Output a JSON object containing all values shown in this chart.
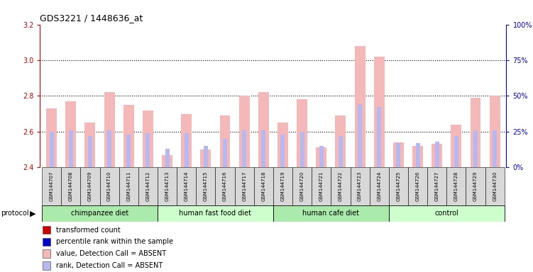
{
  "title": "GDS3221 / 1448636_at",
  "samples": [
    "GSM144707",
    "GSM144708",
    "GSM144709",
    "GSM144710",
    "GSM144711",
    "GSM144712",
    "GSM144713",
    "GSM144714",
    "GSM144715",
    "GSM144716",
    "GSM144717",
    "GSM144718",
    "GSM144719",
    "GSM144720",
    "GSM144721",
    "GSM144722",
    "GSM144723",
    "GSM144724",
    "GSM144725",
    "GSM144726",
    "GSM144727",
    "GSM144728",
    "GSM144729",
    "GSM144730"
  ],
  "values": [
    2.73,
    2.77,
    2.65,
    2.82,
    2.75,
    2.72,
    2.47,
    2.7,
    2.5,
    2.69,
    2.8,
    2.82,
    2.65,
    2.78,
    2.51,
    2.69,
    3.08,
    3.02,
    2.54,
    2.52,
    2.53,
    2.64,
    2.79,
    2.8
  ],
  "ranks": [
    25,
    26,
    22,
    26,
    23,
    24,
    13,
    24,
    15,
    20,
    26,
    26,
    23,
    25,
    15,
    22,
    44,
    42,
    17,
    17,
    18,
    22,
    26,
    26
  ],
  "ymin": 2.4,
  "ymax": 3.2,
  "yticks_left": [
    2.4,
    2.6,
    2.8,
    3.0,
    3.2
  ],
  "yticks_right": [
    0,
    25,
    50,
    75,
    100
  ],
  "grid_lines": [
    2.6,
    2.8,
    3.0
  ],
  "bar_color": "#f5b8b8",
  "rank_color": "#b8b8f0",
  "protocol_groups": [
    {
      "label": "chimpanzee diet",
      "start": 0,
      "end": 6,
      "color": "#aaeaaa"
    },
    {
      "label": "human fast food diet",
      "start": 6,
      "end": 12,
      "color": "#ccffcc"
    },
    {
      "label": "human cafe diet",
      "start": 12,
      "end": 18,
      "color": "#aaeaaa"
    },
    {
      "label": "control",
      "start": 18,
      "end": 24,
      "color": "#ccffcc"
    }
  ],
  "left_axis_color": "#cc0000",
  "right_axis_color": "#0000cc",
  "bg_color": "#d8d8d8",
  "legend_items": [
    {
      "color": "#cc0000",
      "label": "transformed count"
    },
    {
      "color": "#0000cc",
      "label": "percentile rank within the sample"
    },
    {
      "color": "#f5b8b8",
      "label": "value, Detection Call = ABSENT"
    },
    {
      "color": "#b8b8f0",
      "label": "rank, Detection Call = ABSENT"
    }
  ]
}
